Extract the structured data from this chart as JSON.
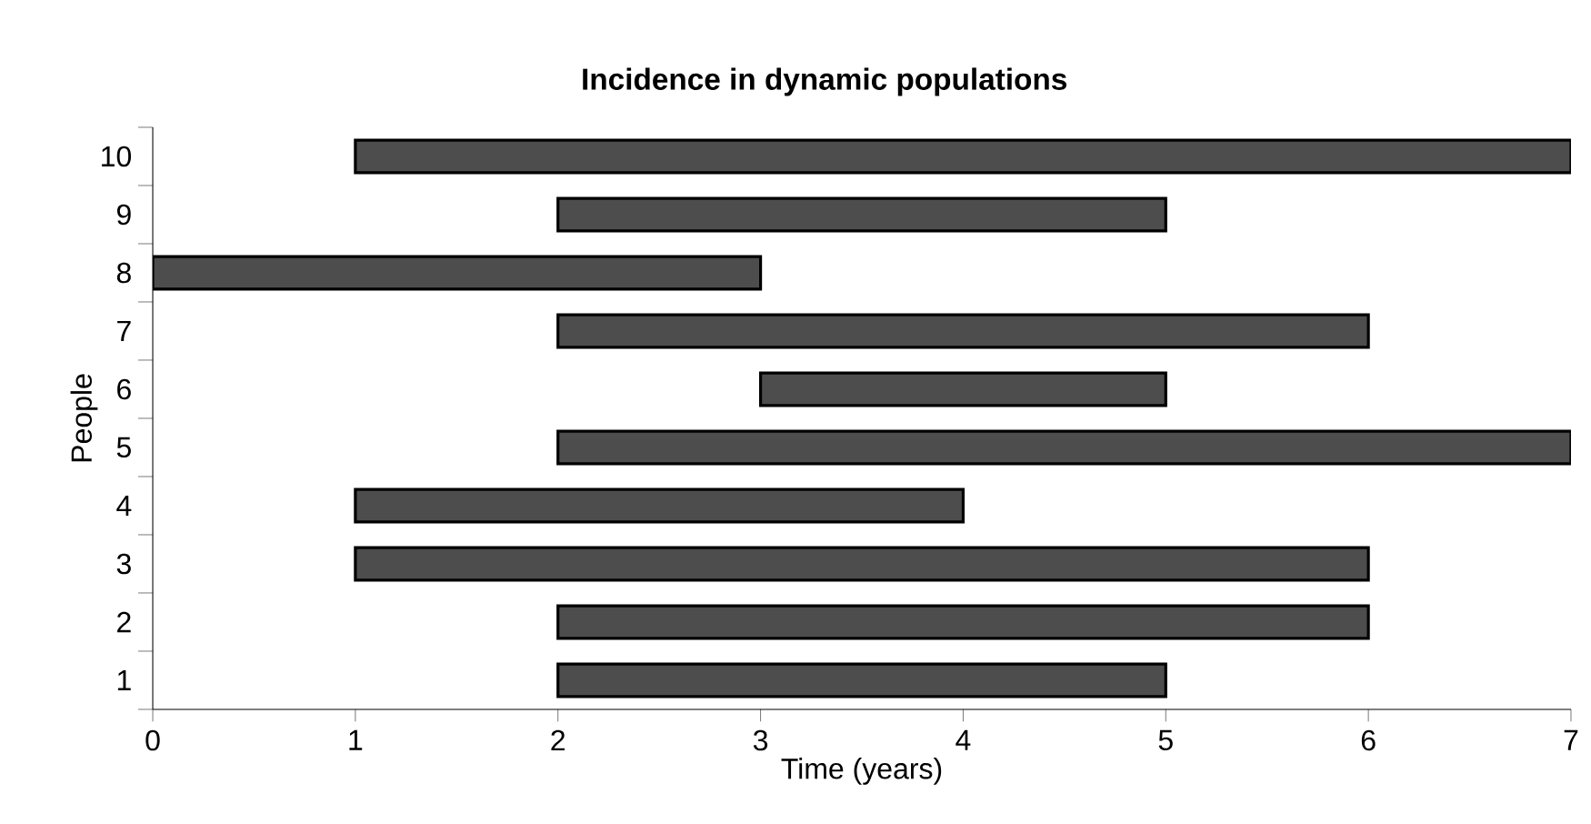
{
  "chart_data": {
    "type": "bar",
    "orientation": "horizontal",
    "title": "Incidence in dynamic populations",
    "xlabel": "Time (years)",
    "ylabel": "People",
    "categories": [
      "10",
      "9",
      "8",
      "7",
      "6",
      "5",
      "4",
      "3",
      "2",
      "1"
    ],
    "values": [
      6,
      3,
      3,
      4,
      2,
      5,
      3,
      5,
      4,
      3
    ],
    "base": [
      1,
      2,
      0,
      2,
      3,
      2,
      1,
      1,
      2,
      2
    ],
    "color": "#4d4d4d",
    "xlim": [
      0,
      7
    ],
    "xticks": [
      0,
      1,
      2,
      3,
      4,
      5,
      6,
      7
    ]
  }
}
